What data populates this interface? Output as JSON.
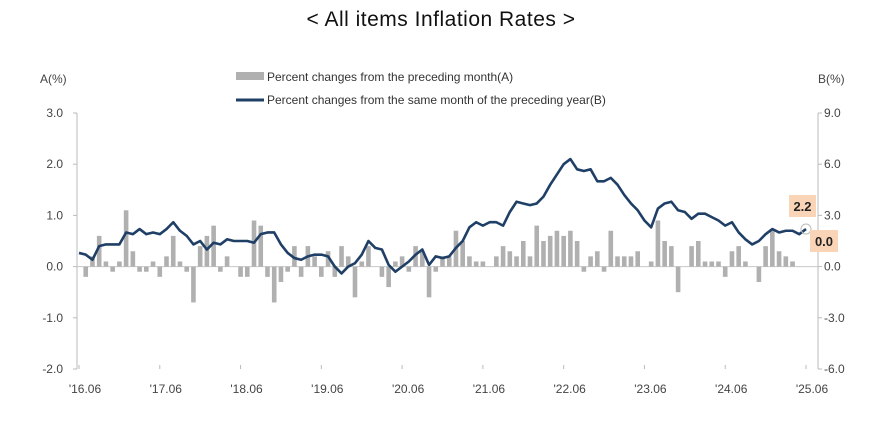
{
  "chart_data": {
    "type": "bar+line",
    "title": "< All items Inflation Rates >",
    "left_axis_label": "A(%)",
    "right_axis_label": "B(%)",
    "left_ylim": [
      -2.0,
      3.0
    ],
    "right_ylim": [
      -6.0,
      9.0
    ],
    "left_ticks": [
      "3.0",
      "2.0",
      "1.0",
      "0.0",
      "-1.0",
      "-2.0"
    ],
    "right_ticks": [
      "9.0",
      "6.0",
      "3.0",
      "0.0",
      "-3.0",
      "-6.0"
    ],
    "x_tick_labels": [
      "'16.06",
      "'17.06",
      "'18.06",
      "'19.06",
      "'20.06",
      "'21.06",
      "'22.06",
      "'23.06",
      "'24.06",
      "'25.06"
    ],
    "x_start": "2016.06",
    "x_end": "2025.06",
    "legend": "top-center",
    "series": [
      {
        "name": "Percent changes from the preceding month(A)",
        "type": "bar",
        "axis": "left",
        "color": "#b0b0b0",
        "values": [
          0.0,
          -0.2,
          0.2,
          0.6,
          0.1,
          -0.1,
          0.1,
          1.1,
          0.3,
          -0.1,
          -0.1,
          0.1,
          -0.2,
          0.2,
          0.6,
          0.1,
          -0.1,
          -0.7,
          0.4,
          0.6,
          0.8,
          -0.1,
          0.2,
          0.0,
          -0.2,
          -0.2,
          0.9,
          0.8,
          -0.2,
          -0.7,
          -0.3,
          -0.1,
          0.4,
          -0.2,
          0.4,
          0.2,
          -0.2,
          0.3,
          -0.2,
          0.4,
          0.2,
          -0.6,
          0.1,
          0.4,
          0.0,
          -0.2,
          -0.4,
          0.1,
          0.2,
          -0.1,
          0.4,
          0.3,
          -0.6,
          -0.1,
          0.2,
          0.2,
          0.7,
          0.5,
          0.2,
          0.1,
          0.1,
          0.0,
          0.2,
          0.4,
          0.3,
          0.2,
          0.5,
          0.2,
          0.8,
          0.5,
          0.6,
          0.7,
          0.6,
          0.7,
          0.5,
          -0.1,
          0.2,
          0.3,
          -0.1,
          0.7,
          0.2,
          0.2,
          0.2,
          0.3,
          0.0,
          0.1,
          0.9,
          0.5,
          0.4,
          -0.5,
          0.0,
          0.4,
          0.5,
          0.1,
          0.1,
          0.1,
          -0.2,
          0.3,
          0.4,
          0.1,
          0.0,
          -0.3,
          0.4,
          0.7,
          0.3,
          0.2,
          0.1,
          0.0,
          0.0
        ]
      },
      {
        "name": "Percent changes from the same month of the preceding year(B)",
        "type": "line",
        "axis": "right",
        "color": "#1f3f66",
        "values": [
          0.8,
          0.7,
          0.4,
          1.2,
          1.3,
          1.3,
          1.3,
          2.0,
          1.9,
          2.2,
          1.9,
          2.0,
          1.9,
          2.2,
          2.6,
          2.1,
          1.8,
          1.3,
          1.5,
          1.0,
          1.4,
          1.3,
          1.6,
          1.5,
          1.5,
          1.5,
          1.4,
          1.9,
          2.0,
          2.0,
          1.3,
          0.8,
          0.5,
          0.4,
          0.6,
          0.7,
          0.7,
          0.6,
          0.0,
          -0.4,
          0.0,
          0.2,
          0.7,
          1.5,
          1.1,
          1.0,
          0.1,
          -0.3,
          0.0,
          0.3,
          0.7,
          1.0,
          0.1,
          0.6,
          0.5,
          0.6,
          1.1,
          1.5,
          2.3,
          2.6,
          2.4,
          2.6,
          2.6,
          2.4,
          3.2,
          3.8,
          3.7,
          3.6,
          3.7,
          4.1,
          4.8,
          5.4,
          6.0,
          6.3,
          5.7,
          5.6,
          5.7,
          5.0,
          5.0,
          5.2,
          4.8,
          4.2,
          3.7,
          3.3,
          2.7,
          2.3,
          3.4,
          3.7,
          3.8,
          3.3,
          3.2,
          2.8,
          3.1,
          3.1,
          2.9,
          2.7,
          2.4,
          2.6,
          2.0,
          1.6,
          1.3,
          1.5,
          1.9,
          2.2,
          2.0,
          2.1,
          2.1,
          1.9,
          2.2
        ]
      }
    ],
    "annotations": [
      {
        "text": "2.2",
        "series": "B",
        "bg": "#f9d4b6"
      },
      {
        "text": "0.0",
        "series": "A",
        "bg": "#f9d4b6"
      }
    ]
  }
}
